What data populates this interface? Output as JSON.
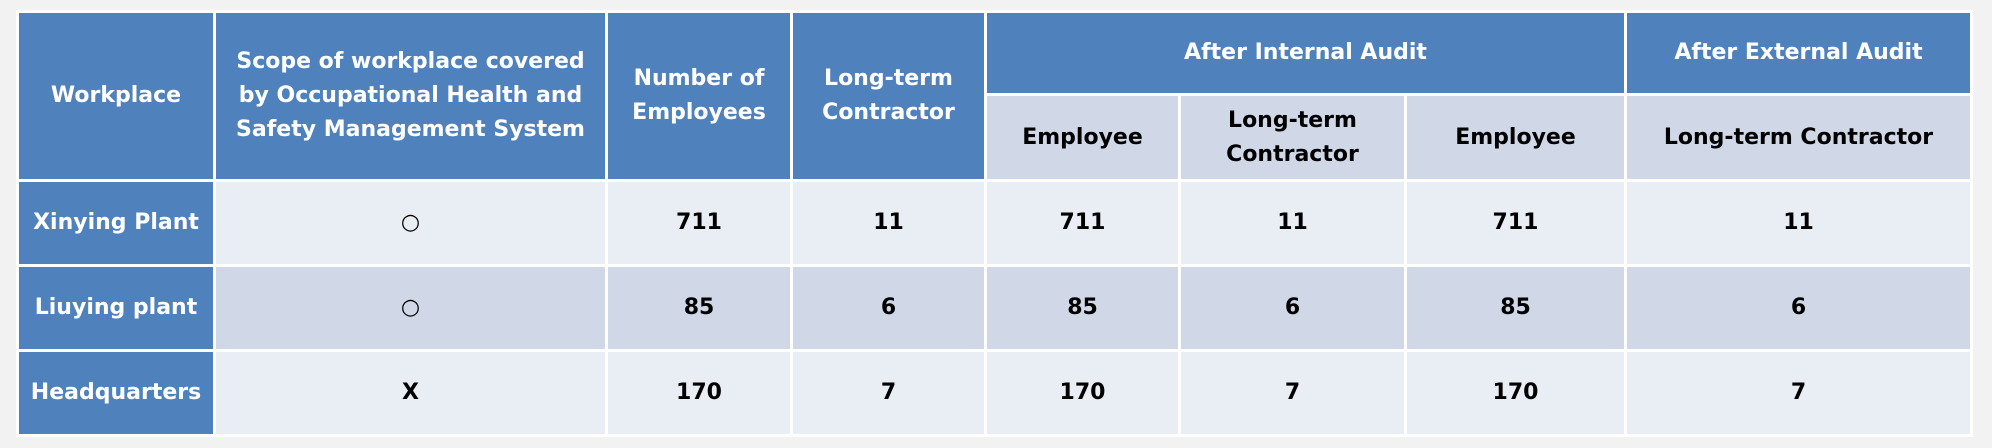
{
  "table": {
    "header": {
      "top": [
        "Workplace",
        "Scope of workplace covered by Occupational Health and Safety Management System",
        "Number of Employees",
        "Long-term Contractor",
        "After Internal Audit",
        "After External Audit"
      ],
      "sub": [
        "Employee",
        "Long-term Contractor",
        "Employee",
        "Long-term Contractor"
      ]
    },
    "rows": [
      [
        "Xinying Plant",
        "○",
        711,
        11,
        711,
        11,
        711,
        11
      ],
      [
        "Liuying plant",
        "○",
        85,
        6,
        85,
        6,
        85,
        6
      ],
      [
        "Headquarters",
        "X",
        170,
        7,
        170,
        7,
        170,
        7
      ]
    ]
  }
}
